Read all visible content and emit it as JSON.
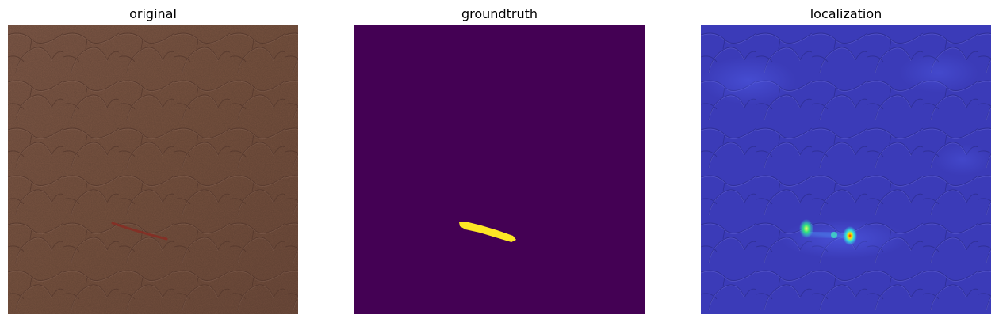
{
  "panels": [
    {
      "title": "original"
    },
    {
      "title": "groundtruth"
    },
    {
      "title": "localization"
    }
  ],
  "colors": {
    "leather": "#7a5546",
    "scratch": "#8a2a22",
    "mask_background": "#440154",
    "mask_defect": "#fde725",
    "heatmap_base": "#3a3ad0",
    "heatmap_hot": "#ff2200"
  }
}
